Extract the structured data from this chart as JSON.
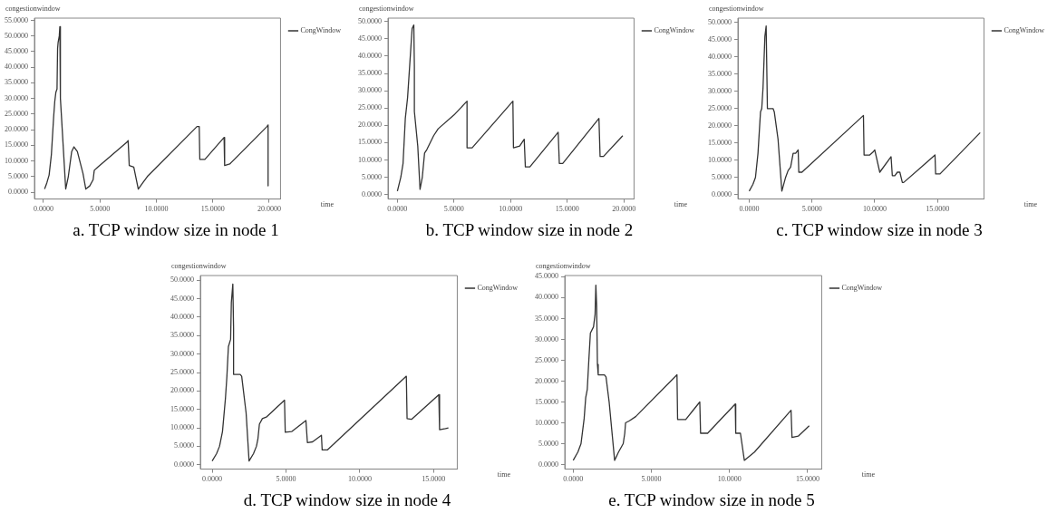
{
  "chart_data": [
    {
      "type": "line",
      "title": "a. TCP window size in node 1",
      "xlabel": "time",
      "ylabel": "congestionwindow",
      "legend": "top right",
      "marker": "none",
      "line_style": "solid",
      "grid": false,
      "xlim": [
        -0.8,
        21
      ],
      "ylim": [
        -2.2,
        55.7
      ],
      "xticks": [
        {
          "value": 0,
          "label": "0.0000"
        },
        {
          "value": 5,
          "label": "5.0000"
        },
        {
          "value": 10,
          "label": "10.0000"
        },
        {
          "value": 15,
          "label": "15.0000"
        },
        {
          "value": 20,
          "label": "20.0000"
        }
      ],
      "yticks": [
        {
          "value": 0,
          "label": "0.0000"
        },
        {
          "value": 5,
          "label": "5.0000"
        },
        {
          "value": 10,
          "label": "10.0000"
        },
        {
          "value": 15,
          "label": "15.0000"
        },
        {
          "value": 20,
          "label": "20.0000"
        },
        {
          "value": 25,
          "label": "25.0000"
        },
        {
          "value": 30,
          "label": "30.0000"
        },
        {
          "value": 35,
          "label": "35.0000"
        },
        {
          "value": 40,
          "label": "40.0000"
        },
        {
          "value": 45,
          "label": "45.0000"
        },
        {
          "value": 50,
          "label": "50.0000"
        },
        {
          "value": 55,
          "label": "55.0000"
        }
      ],
      "series": [
        {
          "name": "CongWindow",
          "color": "#333333",
          "x": [
            0.1,
            0.3,
            0.5,
            0.7,
            0.8,
            0.9,
            1.0,
            1.1,
            1.2,
            1.25,
            1.3,
            1.4,
            1.45,
            1.5,
            1.97,
            2.2,
            2.5,
            2.7,
            3.0,
            3.5,
            3.75,
            4.1,
            4.4,
            4.5,
            4.8,
            7.4,
            7.5,
            7.6,
            8.0,
            8.4,
            8.8,
            9.2,
            13.6,
            13.8,
            13.85,
            14.3,
            16.0,
            16.05,
            16.5,
            19.8,
            19.9,
            19.9
          ],
          "values": [
            1,
            3,
            5.5,
            12,
            18,
            24,
            29,
            32,
            33,
            46,
            48,
            50,
            53,
            30,
            1,
            5,
            13,
            14.5,
            13,
            6,
            1,
            2,
            4,
            7,
            8,
            16,
            16.5,
            8.5,
            8,
            1,
            3,
            5,
            21,
            21,
            10.5,
            10.5,
            17.5,
            8.5,
            9,
            21,
            21.5,
            2
          ]
        }
      ]
    },
    {
      "type": "line",
      "title": "b. TCP window size in node 2",
      "xlabel": "time",
      "ylabel": "congestionwindow",
      "legend": "top right",
      "marker": "none",
      "line_style": "solid",
      "grid": false,
      "xlim": [
        -0.83,
        20.9
      ],
      "ylim": [
        -1.3,
        51
      ],
      "xticks": [
        {
          "value": 0,
          "label": "0.0000"
        },
        {
          "value": 5,
          "label": "5.0000"
        },
        {
          "value": 10,
          "label": "10.0000"
        },
        {
          "value": 15,
          "label": "15.0000"
        },
        {
          "value": 20,
          "label": "20.0000"
        }
      ],
      "yticks": [
        {
          "value": 0,
          "label": "0.0000"
        },
        {
          "value": 5,
          "label": "5.0000"
        },
        {
          "value": 10,
          "label": "10.0000"
        },
        {
          "value": 15,
          "label": "15.0000"
        },
        {
          "value": 20,
          "label": "20.0000"
        },
        {
          "value": 25,
          "label": "25.0000"
        },
        {
          "value": 30,
          "label": "30.0000"
        },
        {
          "value": 35,
          "label": "35.0000"
        },
        {
          "value": 40,
          "label": "40.0000"
        },
        {
          "value": 45,
          "label": "45.0000"
        },
        {
          "value": 50,
          "label": "50.0000"
        }
      ],
      "series": [
        {
          "name": "CongWindow",
          "color": "#333333",
          "x": [
            0,
            0.3,
            0.5,
            0.7,
            0.9,
            1.1,
            1.3,
            1.45,
            1.5,
            1.5,
            1.8,
            2.0,
            2.2,
            2.4,
            2.6,
            3.2,
            3.6,
            5.0,
            6.15,
            6.15,
            6.6,
            10.2,
            10.25,
            10.8,
            11.2,
            11.3,
            11.7,
            14.2,
            14.3,
            14.6,
            17.8,
            17.9,
            18.2,
            19.9
          ],
          "values": [
            1,
            5,
            9,
            22,
            28,
            38,
            48,
            49,
            37,
            24,
            14,
            1.5,
            5,
            12,
            13,
            17,
            19,
            23,
            27,
            13.5,
            13.5,
            27,
            13.5,
            14,
            16,
            8,
            8,
            18,
            9,
            9,
            22,
            11,
            11,
            17
          ]
        }
      ]
    },
    {
      "type": "line",
      "title": "c. TCP window size in node 3",
      "xlabel": "time",
      "ylabel": "congestionwindow",
      "legend": "top right",
      "marker": "none",
      "line_style": "solid",
      "grid": false,
      "xlim": [
        -0.9,
        18.7
      ],
      "ylim": [
        -1.3,
        51.3
      ],
      "xticks": [
        {
          "value": 0,
          "label": "0.0000"
        },
        {
          "value": 5,
          "label": "5.0000"
        },
        {
          "value": 10,
          "label": "10.0000"
        },
        {
          "value": 15,
          "label": "15.0000"
        }
      ],
      "yticks": [
        {
          "value": 0,
          "label": "0.0000"
        },
        {
          "value": 5,
          "label": "5.0000"
        },
        {
          "value": 10,
          "label": "10.0000"
        },
        {
          "value": 15,
          "label": "15.0000"
        },
        {
          "value": 20,
          "label": "20.0000"
        },
        {
          "value": 25,
          "label": "25.0000"
        },
        {
          "value": 30,
          "label": "30.0000"
        },
        {
          "value": 35,
          "label": "35.0000"
        },
        {
          "value": 40,
          "label": "40.0000"
        },
        {
          "value": 45,
          "label": "45.0000"
        },
        {
          "value": 50,
          "label": "50.0000"
        }
      ],
      "series": [
        {
          "name": "CongWindow",
          "color": "#333333",
          "x": [
            0,
            0.3,
            0.5,
            0.7,
            0.9,
            1.0,
            1.1,
            1.25,
            1.35,
            1.4,
            1.45,
            1.9,
            2.0,
            2.3,
            2.4,
            2.6,
            2.9,
            3.1,
            3.3,
            3.5,
            3.7,
            3.9,
            3.95,
            4.2,
            9.1,
            9.15,
            9.6,
            9.9,
            10.0,
            10.4,
            11.3,
            11.4,
            11.6,
            11.8,
            12.0,
            12.2,
            12.3,
            14.8,
            14.85,
            15.2,
            18.4
          ],
          "values": [
            1,
            3,
            5,
            12,
            24,
            25,
            31,
            46,
            49,
            49,
            25,
            25,
            24,
            16,
            11,
            1,
            5,
            7,
            8,
            12,
            12,
            13,
            6.5,
            6.5,
            23,
            11.5,
            11.5,
            12.5,
            13,
            6.5,
            11,
            5.5,
            5.5,
            6.5,
            6.5,
            3.5,
            3.5,
            11.5,
            6,
            6,
            18
          ]
        }
      ]
    },
    {
      "type": "line",
      "title": "d. TCP window size in node 4",
      "xlabel": "time",
      "ylabel": "congestionwindow",
      "legend": "top right",
      "marker": "none",
      "line_style": "solid",
      "grid": false,
      "xlim": [
        -0.8,
        16.6
      ],
      "ylim": [
        -1.2,
        51.3
      ],
      "xticks": [
        {
          "value": 0,
          "label": "0.0000"
        },
        {
          "value": 5,
          "label": "5.0000"
        },
        {
          "value": 10,
          "label": "10.0000"
        },
        {
          "value": 15,
          "label": "15.0000"
        }
      ],
      "yticks": [
        {
          "value": 0,
          "label": "0.0000"
        },
        {
          "value": 5,
          "label": "5.0000"
        },
        {
          "value": 10,
          "label": "10.0000"
        },
        {
          "value": 15,
          "label": "15.0000"
        },
        {
          "value": 20,
          "label": "20.0000"
        },
        {
          "value": 25,
          "label": "25.0000"
        },
        {
          "value": 30,
          "label": "30.0000"
        },
        {
          "value": 35,
          "label": "35.0000"
        },
        {
          "value": 40,
          "label": "40.0000"
        },
        {
          "value": 45,
          "label": "45.0000"
        },
        {
          "value": 50,
          "label": "50.0000"
        }
      ],
      "series": [
        {
          "name": "CongWindow",
          "color": "#333333",
          "x": [
            0,
            0.3,
            0.5,
            0.7,
            0.9,
            1.0,
            1.1,
            1.25,
            1.3,
            1.4,
            1.45,
            1.45,
            1.9,
            2.0,
            2.3,
            2.5,
            2.8,
            3.0,
            3.1,
            3.2,
            3.4,
            3.7,
            4.9,
            4.95,
            5.4,
            6.35,
            6.45,
            6.8,
            7.4,
            7.45,
            7.8,
            13.15,
            13.2,
            13.5,
            15.35,
            15.4,
            15.8,
            16.0
          ],
          "values": [
            1,
            3,
            5,
            9,
            18,
            24,
            32,
            34,
            44,
            49,
            37,
            24.5,
            24.5,
            24,
            14,
            1,
            3,
            5,
            7,
            11,
            12.5,
            13,
            17.5,
            8.8,
            9,
            12,
            6,
            6.2,
            8,
            4,
            4,
            24,
            12.5,
            12.3,
            19,
            9.5,
            9.8,
            10
          ]
        }
      ]
    },
    {
      "type": "line",
      "title": "e. TCP window size in node 5",
      "xlabel": "time",
      "ylabel": "congestionwindow",
      "legend": "top right",
      "marker": "none",
      "line_style": "solid",
      "grid": false,
      "xlim": [
        -0.54,
        15.9
      ],
      "ylim": [
        -1.1,
        45.3
      ],
      "xticks": [
        {
          "value": 0,
          "label": "0.0000"
        },
        {
          "value": 5,
          "label": "5.0000"
        },
        {
          "value": 10,
          "label": "10.0000"
        },
        {
          "value": 15,
          "label": "15.0000"
        }
      ],
      "yticks": [
        {
          "value": 0,
          "label": "0.0000"
        },
        {
          "value": 5,
          "label": "5.0000"
        },
        {
          "value": 10,
          "label": "10.0000"
        },
        {
          "value": 15,
          "label": "15.0000"
        },
        {
          "value": 20,
          "label": "20.0000"
        },
        {
          "value": 25,
          "label": "25.0000"
        },
        {
          "value": 30,
          "label": "30.0000"
        },
        {
          "value": 35,
          "label": "35.0000"
        },
        {
          "value": 40,
          "label": "40.0000"
        },
        {
          "value": 45,
          "label": "45.0000"
        }
      ],
      "series": [
        {
          "name": "CongWindow",
          "color": "#333333",
          "x": [
            0,
            0.3,
            0.5,
            0.7,
            0.8,
            0.9,
            1.0,
            1.1,
            1.3,
            1.4,
            1.45,
            1.5,
            1.55,
            1.6,
            2.0,
            2.1,
            2.3,
            2.5,
            2.65,
            2.9,
            3.2,
            3.3,
            3.35,
            3.6,
            4.0,
            6.64,
            6.68,
            7.2,
            8.1,
            8.15,
            8.6,
            10.37,
            10.4,
            10.7,
            10.95,
            11.6,
            13.94,
            14.0,
            14.4,
            15.1
          ],
          "values": [
            1,
            3,
            5,
            11,
            16,
            18,
            25,
            31.5,
            33,
            36,
            43,
            38,
            24,
            21.5,
            21.5,
            21,
            15,
            7,
            1,
            3,
            5,
            7.5,
            10,
            10.5,
            11.5,
            21.5,
            10.8,
            10.8,
            15,
            7.5,
            7.5,
            14.5,
            7.5,
            7.5,
            1,
            3,
            13,
            6.5,
            6.8,
            9.3
          ]
        }
      ]
    }
  ]
}
